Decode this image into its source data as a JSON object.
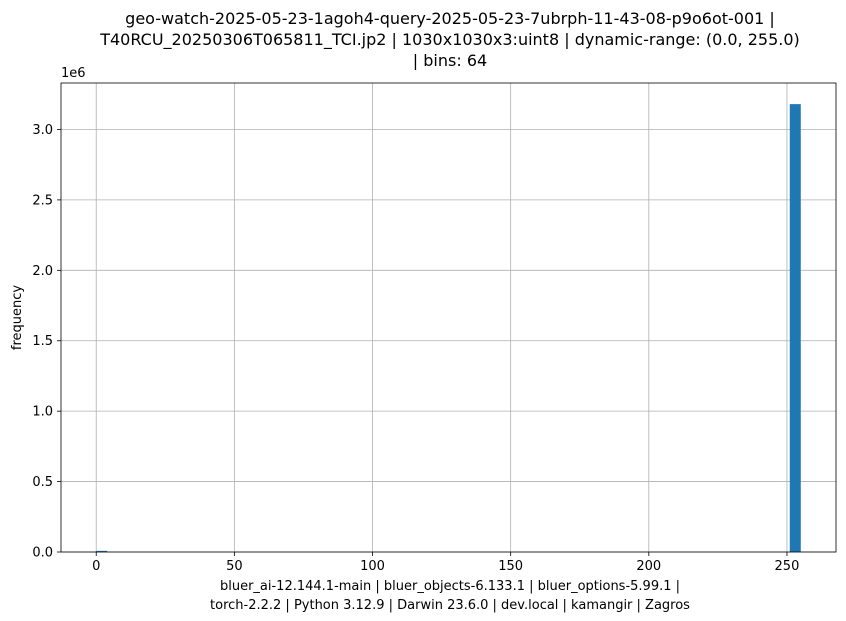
{
  "chart_data": {
    "type": "bar",
    "title": [
      "geo-watch-2025-05-23-1agoh4-query-2025-05-23-7ubrph-11-43-08-p9o6ot-001 |",
      "T40RCU_20250306T065811_TCI.jp2 | 1030x1030x3:uint8 | dynamic-range: (0.0, 255.0)",
      "| bins: 64"
    ],
    "ylabel": "frequency",
    "y_offset_text": "1e6",
    "footer": [
      "bluer_ai-12.144.1-main | bluer_objects-6.133.1 | bluer_options-5.99.1 |",
      "torch-2.2.2 | Python 3.12.9 | Darwin 23.6.0 | dev.local | kamangir | Zagros"
    ],
    "xlim": [
      -12.75,
      267.75
    ],
    "ylim": [
      0,
      3.33
    ],
    "x_ticks": [
      0,
      50,
      100,
      150,
      200,
      250
    ],
    "x_tick_labels": [
      "0",
      "50",
      "100",
      "150",
      "200",
      "250"
    ],
    "y_ticks": [
      0,
      0.5,
      1.0,
      1.5,
      2.0,
      2.5,
      3.0
    ],
    "y_tick_labels": [
      "0.0",
      "0.5",
      "1.0",
      "1.5",
      "2.0",
      "2.5",
      "3.0"
    ],
    "grid": true,
    "bin_width": 3.984375,
    "bars": [
      {
        "x": 0,
        "value": 0.008
      },
      {
        "x": 251.015625,
        "value": 3.18
      }
    ],
    "color": "#1f77b4"
  }
}
